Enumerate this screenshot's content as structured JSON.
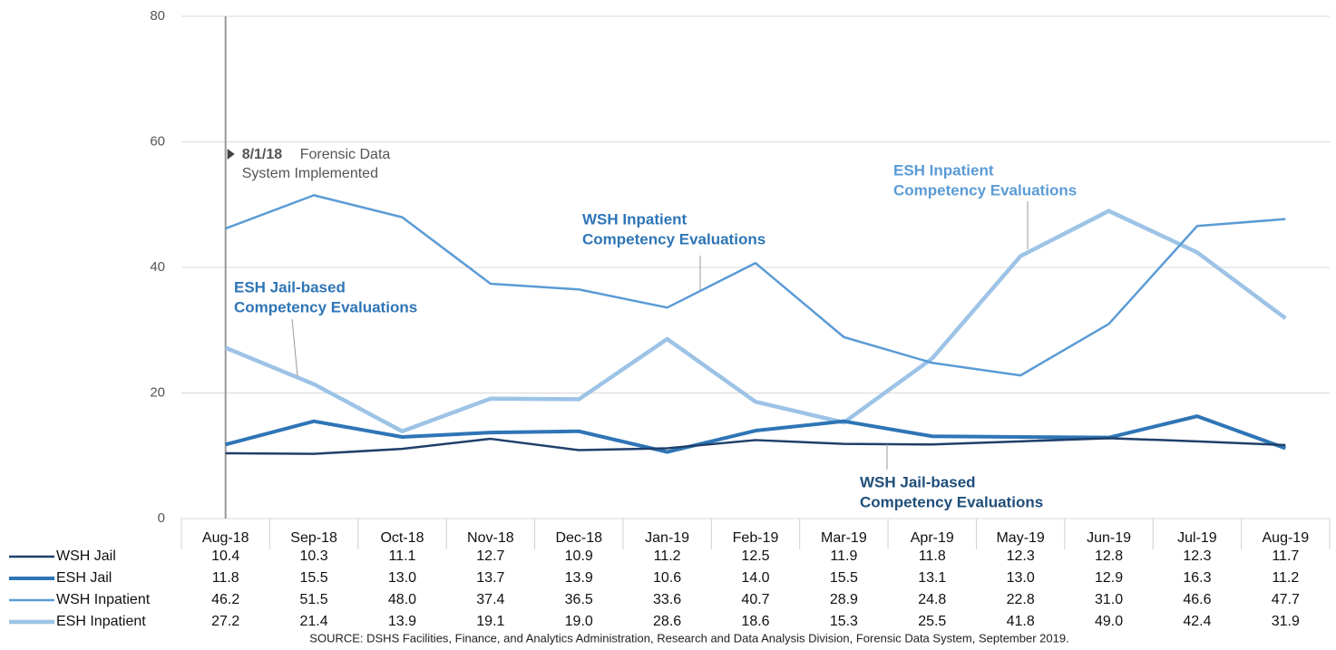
{
  "chart_data": {
    "type": "line",
    "categories": [
      "Aug-18",
      "Sep-18",
      "Oct-18",
      "Nov-18",
      "Dec-18",
      "Jan-19",
      "Feb-19",
      "Mar-19",
      "Apr-19",
      "May-19",
      "Jun-19",
      "Jul-19",
      "Aug-19"
    ],
    "ylim": [
      0,
      80
    ],
    "yticks": [
      0,
      20,
      40,
      60,
      80
    ],
    "grid": true,
    "series": [
      {
        "name": "WSH Jail",
        "color": "#1f3f6b",
        "values": [
          10.4,
          10.3,
          11.1,
          12.7,
          10.9,
          11.2,
          12.5,
          11.9,
          11.8,
          12.3,
          12.8,
          12.3,
          11.7
        ],
        "value_labels": [
          "10.4",
          "10.3",
          "11.1",
          "12.7",
          "10.9",
          "11.2",
          "12.5",
          "11.9",
          "11.8",
          "12.3",
          "12.8",
          "12.3",
          "11.7"
        ],
        "label": [
          "WSH Jail-based",
          "Competency Evaluations"
        ]
      },
      {
        "name": "ESH Jail",
        "color": "#2e75b6",
        "values": [
          11.8,
          15.5,
          13.0,
          13.7,
          13.9,
          10.6,
          14.0,
          15.5,
          13.1,
          13.0,
          12.9,
          16.3,
          11.2
        ],
        "value_labels": [
          "11.8",
          "15.5",
          "13.0",
          "13.7",
          "13.9",
          "10.6",
          "14.0",
          "15.5",
          "13.1",
          "13.0",
          "12.9",
          "16.3",
          "11.2"
        ],
        "label": [
          "ESH Jail-based",
          "Competency Evaluations"
        ]
      },
      {
        "name": "WSH Inpatient",
        "color": "#5b9bd5",
        "values": [
          46.2,
          51.5,
          48.0,
          37.4,
          36.5,
          33.6,
          40.7,
          28.9,
          24.8,
          22.8,
          31.0,
          46.6,
          47.7
        ],
        "value_labels": [
          "46.2",
          "51.5",
          "48.0",
          "37.4",
          "36.5",
          "33.6",
          "40.7",
          "28.9",
          "24.8",
          "22.8",
          "31.0",
          "46.6",
          "47.7"
        ],
        "label": [
          "WSH Inpatient",
          "Competency Evaluations"
        ]
      },
      {
        "name": "ESH Inpatient",
        "color": "#9dc3e6",
        "values": [
          27.2,
          21.4,
          13.9,
          19.1,
          19.0,
          28.6,
          18.6,
          15.3,
          25.5,
          41.8,
          49.0,
          42.4,
          31.9
        ],
        "value_labels": [
          "27.2",
          "21.4",
          "13.9",
          "19.1",
          "19.0",
          "28.6",
          "18.6",
          "15.3",
          "25.5",
          "41.8",
          "49.0",
          "42.4",
          "31.9"
        ],
        "label": [
          "ESH Inpatient",
          "Competency Evaluations"
        ]
      }
    ],
    "event": {
      "date": "8/1/18",
      "text": [
        "Forensic Data",
        "System Implemented"
      ]
    },
    "source": "SOURCE: DSHS Facilities, Finance, and Analytics Administration, Research and Data Analysis Division, Forensic Data System, September 2019."
  }
}
